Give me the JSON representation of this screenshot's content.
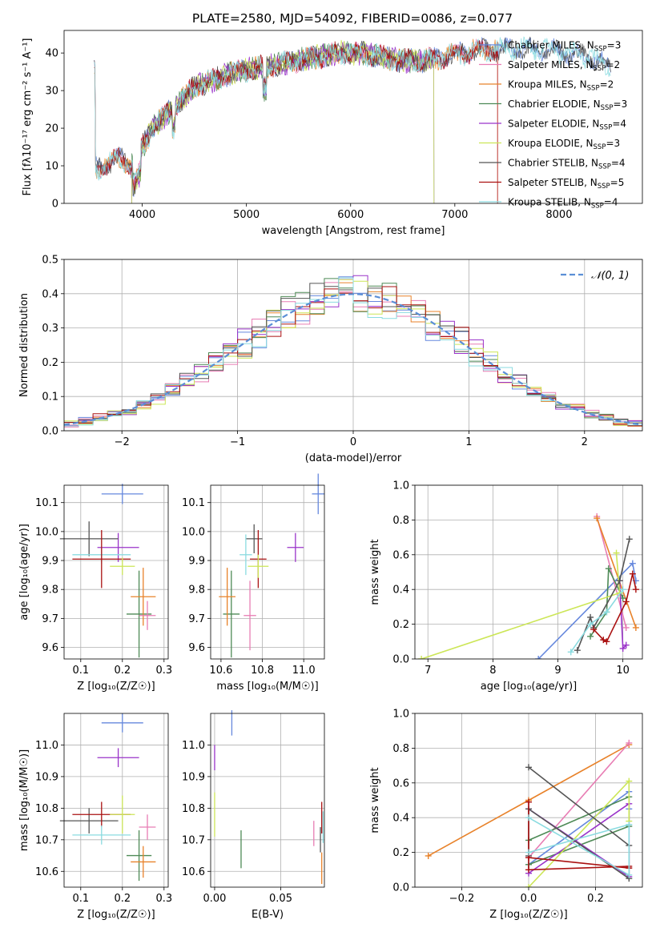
{
  "figure": {
    "title": "PLATE=2580, MJD=54092, FIBERID=0086, z=0.077"
  },
  "colors": {
    "cm": "#6688dd",
    "sm": "#e87db4",
    "km": "#e8822a",
    "ce": "#4e8a56",
    "se": "#9a33c9",
    "ke": "#cce657",
    "cs": "#555555",
    "ss": "#aa1111",
    "ks": "#8adbe0"
  },
  "chart_data": [
    {
      "id": "spectrum",
      "type": "line",
      "xlabel": "wavelength [Angstrom, rest frame]",
      "ylabel": "Flux [fλ10⁻¹⁷ erg cm⁻² s⁻¹ A⁻¹]",
      "xlim": [
        3250,
        8800
      ],
      "ylim": [
        0,
        46
      ],
      "xticks": [
        "4000",
        "5000",
        "6000",
        "7000",
        "8000"
      ],
      "yticks": [
        "0",
        "10",
        "20",
        "30",
        "40"
      ],
      "grid": false,
      "legend_position": "top-right",
      "continuum": {
        "x": [
          3550,
          3700,
          3800,
          3900,
          4000,
          4100,
          4250,
          4400,
          4500,
          4700,
          4900,
          5100,
          5300,
          5500,
          5700,
          5900,
          6100,
          6300,
          6500,
          6700,
          6900,
          7100,
          7300,
          7500,
          7700,
          7900,
          8100,
          8300,
          8500
        ],
        "y": [
          9,
          11,
          12,
          10,
          15,
          20,
          24,
          28,
          31,
          33,
          35,
          36,
          37,
          38,
          39,
          40,
          40,
          39,
          38,
          38,
          39,
          40,
          41,
          41,
          41,
          41,
          40,
          39,
          36
        ]
      },
      "series": [
        {
          "name": "Chabrier MILES",
          "nssp": "3",
          "color_key": "cm",
          "x_range": [
            3540,
            8500
          ]
        },
        {
          "name": "Salpeter MILES",
          "nssp": "2",
          "color_key": "sm",
          "x_range": [
            3540,
            7410
          ]
        },
        {
          "name": "Kroupa MILES",
          "nssp": "2",
          "color_key": "km",
          "x_range": [
            3540,
            7410
          ]
        },
        {
          "name": "Chabrier ELODIE",
          "nssp": "3",
          "color_key": "ce",
          "x_range": [
            3900,
            6800
          ]
        },
        {
          "name": "Salpeter ELODIE",
          "nssp": "4",
          "color_key": "se",
          "x_range": [
            3900,
            6800
          ]
        },
        {
          "name": "Kroupa ELODIE",
          "nssp": "3",
          "color_key": "ke",
          "x_range": [
            3900,
            6800
          ]
        },
        {
          "name": "Chabrier STELIB",
          "nssp": "4",
          "color_key": "cs",
          "x_range": [
            3540,
            8500
          ]
        },
        {
          "name": "Salpeter STELIB",
          "nssp": "5",
          "color_key": "ss",
          "x_range": [
            3540,
            7410
          ]
        },
        {
          "name": "Kroupa STELIB",
          "nssp": "4",
          "color_key": "ks",
          "x_range": [
            3540,
            8500
          ]
        }
      ]
    },
    {
      "id": "residuals",
      "type": "line",
      "xlabel": "(data-model)/error",
      "ylabel": "Normed distribution",
      "xlim": [
        -2.5,
        2.5
      ],
      "ylim": [
        0,
        0.5
      ],
      "xticks": [
        "−2",
        "−1",
        "0",
        "1",
        "2"
      ],
      "yticks": [
        "0.0",
        "0.1",
        "0.2",
        "0.3",
        "0.4",
        "0.5"
      ],
      "grid": true,
      "legend_position": "top-right",
      "reference": {
        "name": "𝒩(0, 1)",
        "mean": 0,
        "sigma": 1,
        "style": "dashed"
      },
      "bin_width": 0.125
    },
    {
      "id": "age_vs_Z",
      "type": "scatter",
      "xlabel": "Z [log₁₀(Z/Z☉)]",
      "ylabel": "age  [log₁₀(age/yr)]",
      "xlim": [
        0.06,
        0.31
      ],
      "ylim": [
        9.56,
        10.16
      ],
      "xticks": [
        "0.1",
        "0.2",
        "0.3"
      ],
      "yticks": [
        "9.6",
        "9.7",
        "9.8",
        "9.9",
        "10.0",
        "10.1"
      ],
      "grid": true,
      "points": [
        {
          "key": "cm",
          "x": 0.2,
          "y": 10.13,
          "xerr": 0.05,
          "yerr": 0.035
        },
        {
          "key": "se",
          "x": 0.19,
          "y": 9.945,
          "xerr": 0.05,
          "yerr": 0.05
        },
        {
          "key": "cs",
          "x": 0.12,
          "y": 9.975,
          "xerr": 0.07,
          "yerr": 0.06
        },
        {
          "key": "ks",
          "x": 0.15,
          "y": 9.92,
          "xerr": 0.07,
          "yerr": 0.03
        },
        {
          "key": "ss",
          "x": 0.15,
          "y": 9.905,
          "xerr": 0.07,
          "yerr": 0.1
        },
        {
          "key": "ke",
          "x": 0.2,
          "y": 9.88,
          "xerr": 0.03,
          "yerr": 0.03
        },
        {
          "key": "ce",
          "x": 0.24,
          "y": 9.715,
          "xerr": 0.03,
          "yerr": 0.15
        },
        {
          "key": "km",
          "x": 0.25,
          "y": 9.775,
          "xerr": 0.03,
          "yerr": 0.1
        },
        {
          "key": "sm",
          "x": 0.26,
          "y": 9.71,
          "xerr": 0.02,
          "yerr": 0.05
        }
      ]
    },
    {
      "id": "age_vs_mass",
      "type": "scatter",
      "xlabel": "mass [log₁₀(M/M☉)]",
      "ylabel": "",
      "xlim": [
        10.55,
        11.1
      ],
      "ylim": [
        9.56,
        10.16
      ],
      "xticks": [
        "10.6",
        "10.8",
        "11.0"
      ],
      "yticks": [
        "9.6",
        "9.7",
        "9.8",
        "9.9",
        "10.0",
        "10.1"
      ],
      "grid": true,
      "points": [
        {
          "key": "cm",
          "x": 11.07,
          "y": 10.13,
          "xerr": 0.03,
          "yerr": 0.07
        },
        {
          "key": "se",
          "x": 10.96,
          "y": 9.945,
          "xerr": 0.04,
          "yerr": 0.05
        },
        {
          "key": "cs",
          "x": 10.76,
          "y": 9.975,
          "xerr": 0.04,
          "yerr": 0.05
        },
        {
          "key": "ks",
          "x": 10.72,
          "y": 9.92,
          "xerr": 0.03,
          "yerr": 0.07
        },
        {
          "key": "ss",
          "x": 10.78,
          "y": 9.905,
          "xerr": 0.04,
          "yerr": 0.1
        },
        {
          "key": "ke",
          "x": 10.78,
          "y": 9.88,
          "xerr": 0.05,
          "yerr": 0.04
        },
        {
          "key": "ce",
          "x": 10.65,
          "y": 9.715,
          "xerr": 0.04,
          "yerr": 0.15
        },
        {
          "key": "km",
          "x": 10.63,
          "y": 9.775,
          "xerr": 0.04,
          "yerr": 0.1
        },
        {
          "key": "sm",
          "x": 10.74,
          "y": 9.71,
          "xerr": 0.03,
          "yerr": 0.12
        }
      ]
    },
    {
      "id": "weight_vs_age",
      "type": "line",
      "xlabel": "age  [log₁₀(age/yr)]",
      "ylabel": "mass weight",
      "xlim": [
        6.8,
        10.3
      ],
      "ylim": [
        0,
        1
      ],
      "xticks": [
        "7",
        "8",
        "9",
        "10"
      ],
      "yticks": [
        "0.0",
        "0.2",
        "0.4",
        "0.6",
        "0.8",
        "1.0"
      ],
      "grid": true,
      "series": [
        {
          "key": "cm",
          "x": [
            8.7,
            10.15,
            10.2
          ],
          "y": [
            0,
            0.55,
            0.45
          ]
        },
        {
          "key": "sm",
          "x": [
            9.6,
            10.05
          ],
          "y": [
            0.82,
            0.18
          ]
        },
        {
          "key": "km",
          "x": [
            9.6,
            10.2
          ],
          "y": [
            0.81,
            0.18
          ]
        },
        {
          "key": "ce",
          "x": [
            9.5,
            9.75,
            9.78,
            10.0
          ],
          "y": [
            0.13,
            0.27,
            0.52,
            0.35
          ]
        },
        {
          "key": "se",
          "x": [
            9.95,
            10.0,
            10.05
          ],
          "y": [
            0.45,
            0.06,
            0.08
          ]
        },
        {
          "key": "ke",
          "x": [
            6.9,
            9.95,
            9.9
          ],
          "y": [
            0,
            0.38,
            0.61
          ]
        },
        {
          "key": "cs",
          "x": [
            9.3,
            9.5,
            9.55,
            9.95,
            10.1
          ],
          "y": [
            0.05,
            0.24,
            0.18,
            0.45,
            0.69
          ]
        },
        {
          "key": "ss",
          "x": [
            9.55,
            9.7,
            9.75,
            10.05,
            10.15,
            10.2
          ],
          "y": [
            0.17,
            0.11,
            0.1,
            0.33,
            0.49,
            0.4
          ]
        },
        {
          "key": "ks",
          "x": [
            9.2,
            9.5,
            9.75,
            10.0
          ],
          "y": [
            0.04,
            0.2,
            0.27,
            0.4
          ]
        }
      ]
    },
    {
      "id": "mass_vs_Z",
      "type": "scatter",
      "xlabel": "Z [log₁₀(Z/Z☉)]",
      "ylabel": "mass [log₁₀(M/M☉)]",
      "xlim": [
        0.06,
        0.31
      ],
      "ylim": [
        10.55,
        11.1
      ],
      "xticks": [
        "0.1",
        "0.2",
        "0.3"
      ],
      "yticks": [
        "10.6",
        "10.7",
        "10.8",
        "10.9",
        "11.0"
      ],
      "grid": true,
      "points": [
        {
          "key": "cm",
          "x": 0.2,
          "y": 11.07,
          "xerr": 0.05,
          "yerr": 0.03
        },
        {
          "key": "se",
          "x": 0.19,
          "y": 10.96,
          "xerr": 0.05,
          "yerr": 0.03
        },
        {
          "key": "cs",
          "x": 0.12,
          "y": 10.76,
          "xerr": 0.07,
          "yerr": 0.04
        },
        {
          "key": "ss",
          "x": 0.15,
          "y": 10.78,
          "xerr": 0.07,
          "yerr": 0.04
        },
        {
          "key": "ke",
          "x": 0.2,
          "y": 10.78,
          "xerr": 0.03,
          "yerr": 0.06
        },
        {
          "key": "ks",
          "x": 0.15,
          "y": 10.715,
          "xerr": 0.07,
          "yerr": 0.03
        },
        {
          "key": "ce",
          "x": 0.24,
          "y": 10.65,
          "xerr": 0.03,
          "yerr": 0.08
        },
        {
          "key": "km",
          "x": 0.25,
          "y": 10.63,
          "xerr": 0.03,
          "yerr": 0.05
        },
        {
          "key": "sm",
          "x": 0.26,
          "y": 10.74,
          "xerr": 0.02,
          "yerr": 0.04
        }
      ]
    },
    {
      "id": "mass_vs_ebv",
      "type": "scatter",
      "xlabel": "E(B-V)",
      "ylabel": "",
      "xlim": [
        -0.003,
        0.083
      ],
      "ylim": [
        10.55,
        11.1
      ],
      "xticks": [
        "0.00",
        "0.05"
      ],
      "yticks": [
        "10.6",
        "10.7",
        "10.8",
        "10.9",
        "11.0"
      ],
      "grid": true,
      "points": [
        {
          "key": "cm",
          "x": 0.013,
          "y": 11.07,
          "xerr": 0,
          "yerr": 0.04
        },
        {
          "key": "se",
          "x": 0.0,
          "y": 10.96,
          "xerr": 0,
          "yerr": 0.04
        },
        {
          "key": "ke",
          "x": 0.0,
          "y": 10.78,
          "xerr": 0,
          "yerr": 0.07
        },
        {
          "key": "ce",
          "x": 0.02,
          "y": 10.67,
          "xerr": 0,
          "yerr": 0.06
        },
        {
          "key": "sm",
          "x": 0.075,
          "y": 10.72,
          "xerr": 0,
          "yerr": 0.04
        },
        {
          "key": "ss",
          "x": 0.081,
          "y": 10.77,
          "xerr": 0,
          "yerr": 0.05
        },
        {
          "key": "ks",
          "x": 0.082,
          "y": 10.74,
          "xerr": 0,
          "yerr": 0.05
        },
        {
          "key": "km",
          "x": 0.081,
          "y": 10.61,
          "xerr": 0,
          "yerr": 0.05
        },
        {
          "key": "cs",
          "x": 0.08,
          "y": 10.7,
          "xerr": 0,
          "yerr": 0.04
        }
      ]
    },
    {
      "id": "weight_vs_Z",
      "type": "line",
      "xlabel": "Z [log₁₀(Z/Z☉)]",
      "ylabel": "mass weight",
      "xlim": [
        -0.34,
        0.34
      ],
      "ylim": [
        0,
        1
      ],
      "xticks": [
        "−0.2",
        "0.0",
        "0.2"
      ],
      "yticks": [
        "0.0",
        "0.2",
        "0.4",
        "0.6",
        "0.8",
        "1.0"
      ],
      "grid": true,
      "series": [
        {
          "key": "km",
          "x": [
            -0.3,
            0.0,
            0.3
          ],
          "y": [
            0.18,
            0.5,
            0.82
          ]
        },
        {
          "key": "sm",
          "x": [
            0.0,
            0.3
          ],
          "y": [
            0.17,
            0.83
          ]
        },
        {
          "key": "cm",
          "x": [
            0.0,
            0.3,
            0.3
          ],
          "y": [
            0.13,
            0.55,
            0.45
          ]
        },
        {
          "key": "ce",
          "x": [
            0.0,
            0.3,
            0.3,
            0.0
          ],
          "y": [
            0.27,
            0.52,
            0.35,
            0.13
          ]
        },
        {
          "key": "se",
          "x": [
            0.0,
            0.3,
            0.3,
            0.0
          ],
          "y": [
            0.45,
            0.06,
            0.48,
            0.08
          ]
        },
        {
          "key": "ke",
          "x": [
            0.0,
            0.3,
            0.3
          ],
          "y": [
            0.0,
            0.61,
            0.38
          ]
        },
        {
          "key": "cs",
          "x": [
            0.0,
            0.3,
            0.3,
            0.0,
            0.0
          ],
          "y": [
            0.69,
            0.24,
            0.05,
            0.45,
            0.18
          ]
        },
        {
          "key": "ss",
          "x": [
            0.0,
            0.0,
            0.3,
            0.3,
            0.0
          ],
          "y": [
            0.49,
            0.1,
            0.12,
            0.11,
            0.17
          ]
        },
        {
          "key": "ks",
          "x": [
            0.0,
            0.3,
            0.3,
            0.0
          ],
          "y": [
            0.4,
            0.07,
            0.36,
            0.2
          ]
        }
      ]
    }
  ]
}
